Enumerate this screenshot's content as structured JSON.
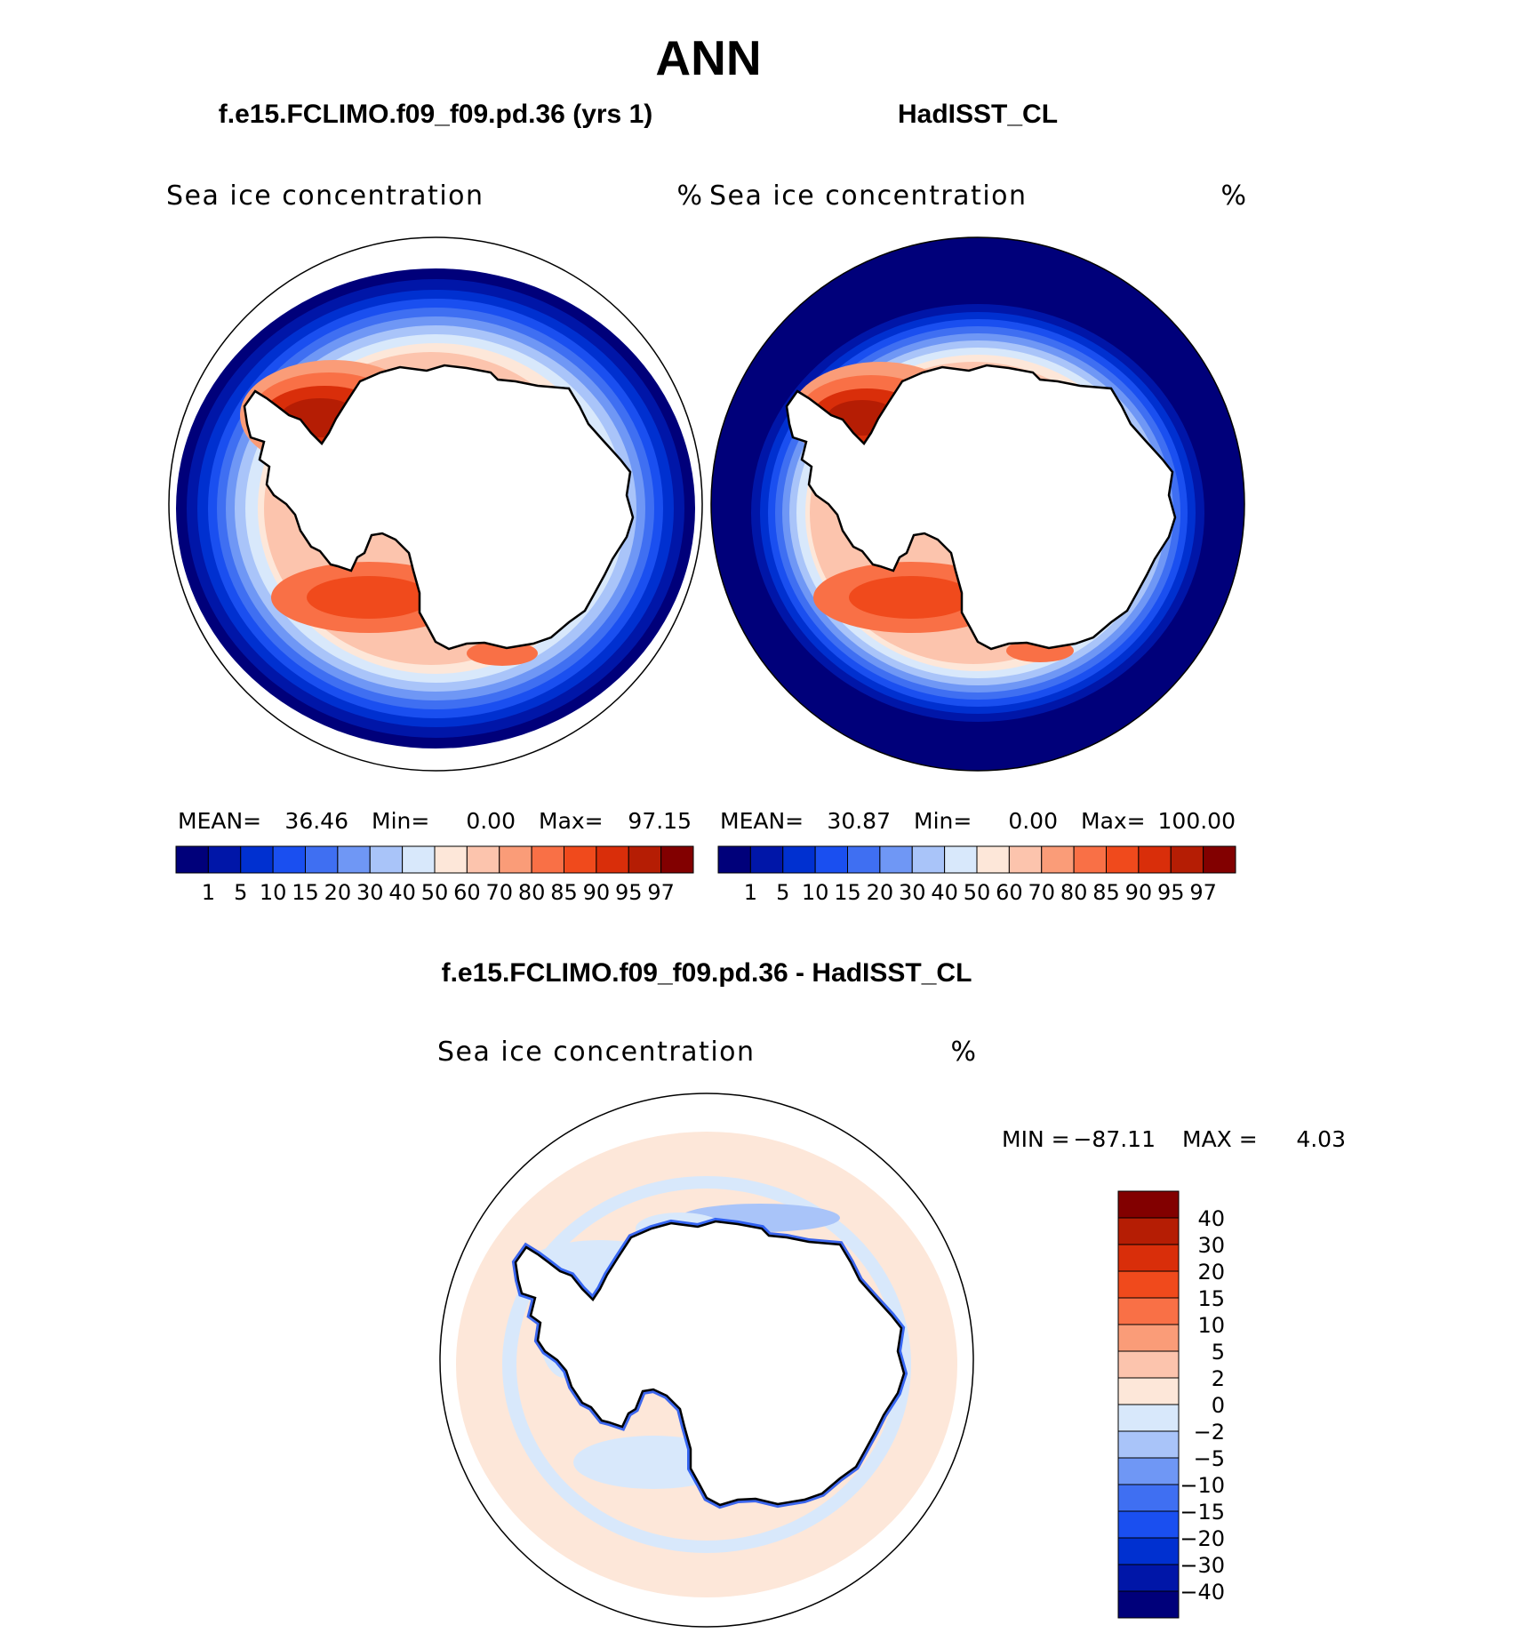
{
  "page": {
    "season": "ANN",
    "panel_left_title": "f.e15.FCLIMO.f09_f09.pd.36 (yrs 1)",
    "panel_right_title": "HadISST_CL",
    "diff_title": "f.e15.FCLIMO.f09_f09.pd.36 - HadISST_CL"
  },
  "panels": [
    {
      "variable": "Sea ice concentration",
      "units": "%",
      "stats": {
        "mean_label": "MEAN=",
        "mean": "36.46",
        "min_label": "Min=",
        "min": "0.00",
        "max_label": "Max=",
        "max": "97.15"
      }
    },
    {
      "variable": "Sea ice concentration",
      "units": "%",
      "stats": {
        "mean_label": "MEAN=",
        "mean": "30.87",
        "min_label": "Min=",
        "min": "0.00",
        "max_label": "Max=",
        "max": "100.00"
      }
    }
  ],
  "diff": {
    "variable": "Sea ice concentration",
    "units": "%",
    "min_label": "MIN =",
    "min": "−87.11",
    "max_label": "MAX =",
    "max": "4.03"
  },
  "colorbar_abs": {
    "labels": [
      "1",
      "5",
      "10",
      "15",
      "20",
      "30",
      "40",
      "50",
      "60",
      "70",
      "80",
      "85",
      "90",
      "95",
      "97"
    ],
    "colors": [
      "#00007a",
      "#0016a8",
      "#0030d0",
      "#1a4ff0",
      "#3f6ff2",
      "#6f97f5",
      "#a9c4f9",
      "#d8e8fb",
      "#fde7d9",
      "#fcc4ad",
      "#fa9c78",
      "#f97046",
      "#f04a1c",
      "#d92e0a",
      "#b51d04",
      "#820000"
    ]
  },
  "colorbar_diff": {
    "labels": [
      "40",
      "30",
      "20",
      "15",
      "10",
      "5",
      "2",
      "0",
      "−2",
      "−5",
      "−10",
      "−15",
      "−20",
      "−30",
      "−40"
    ],
    "colors": [
      "#820000",
      "#b51d04",
      "#d92e0a",
      "#f04a1c",
      "#f97046",
      "#fa9c78",
      "#fcc4ad",
      "#fde7d9",
      "#d8e8fb",
      "#a9c4f9",
      "#6f97f5",
      "#3f6ff2",
      "#1a4ff0",
      "#0030d0",
      "#0016a8",
      "#00007a"
    ]
  }
}
